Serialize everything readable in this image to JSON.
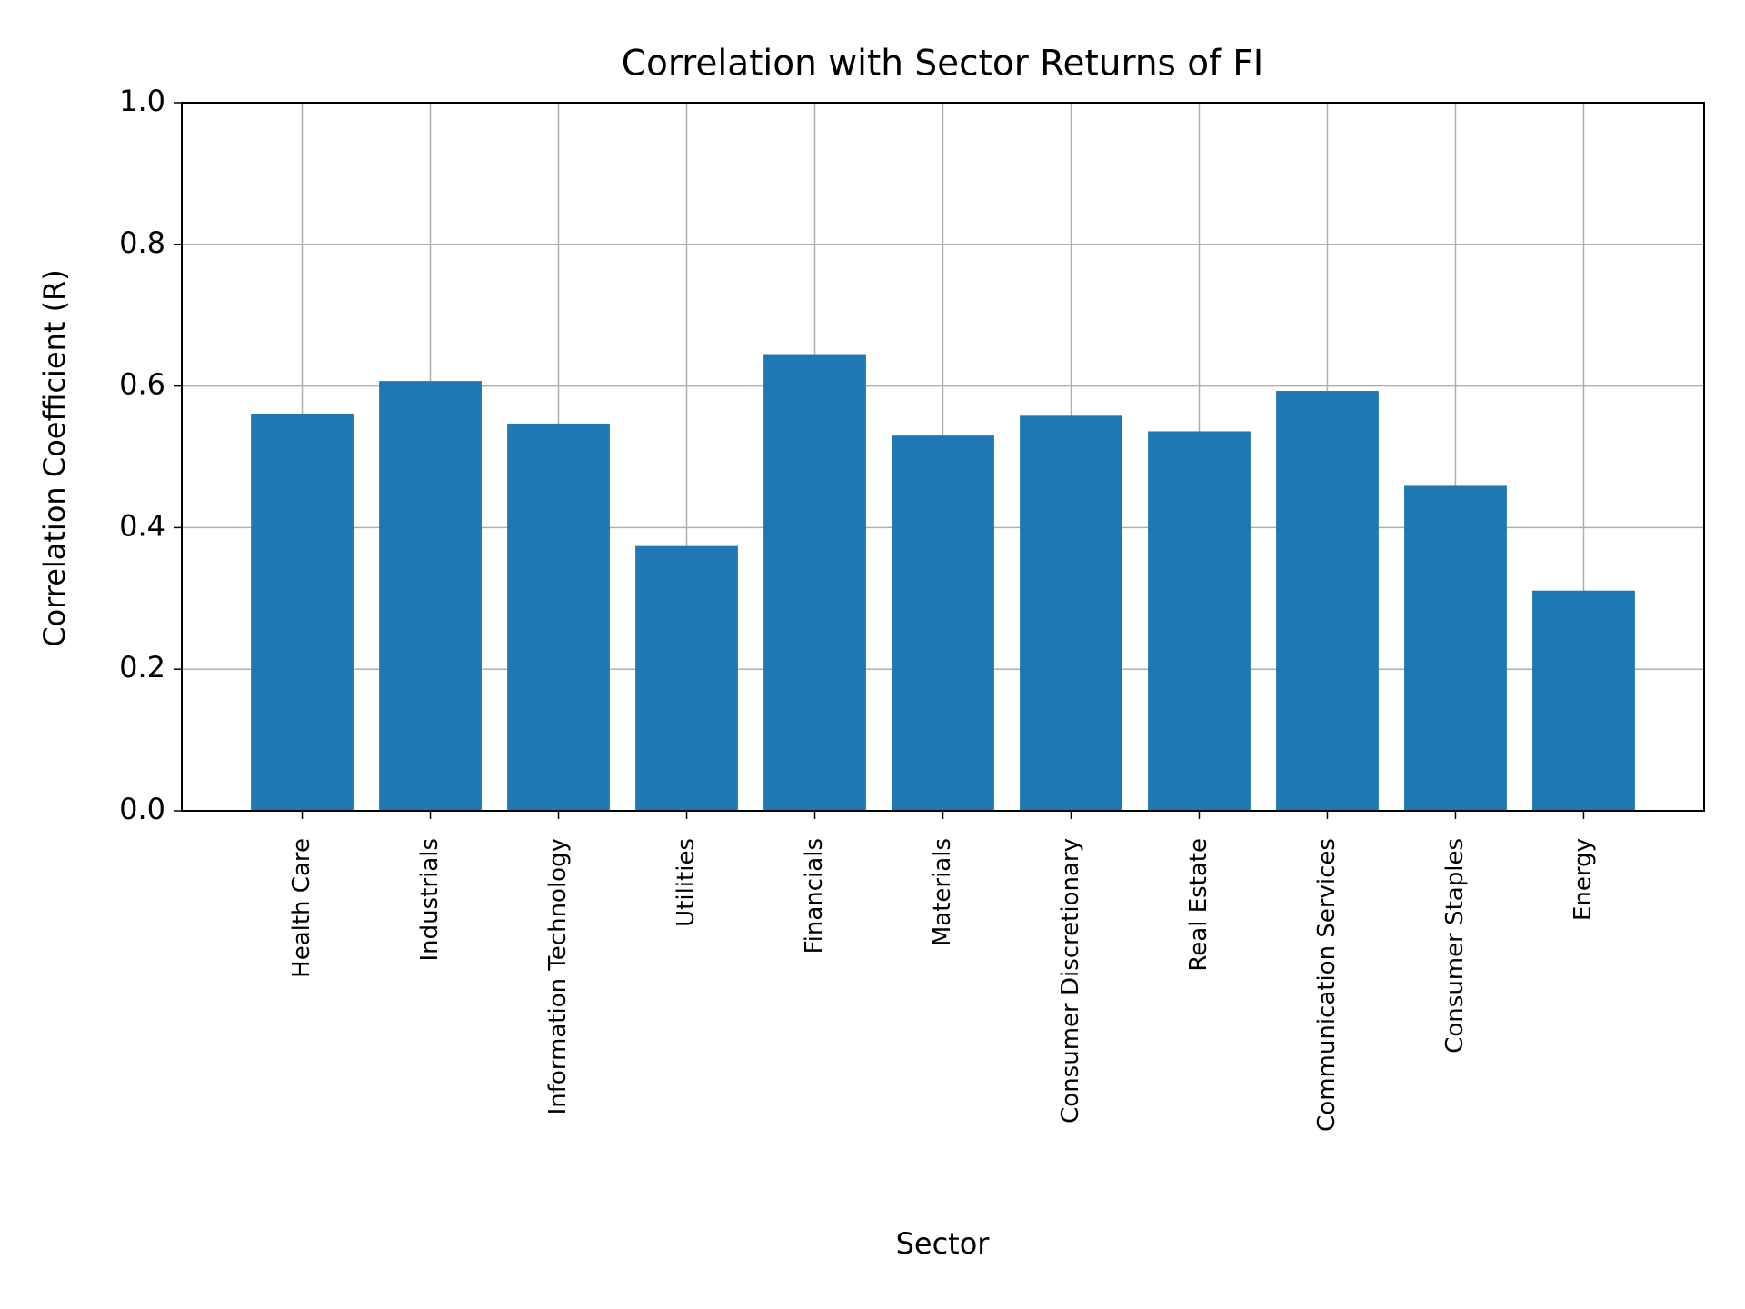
{
  "chart_data": {
    "type": "bar",
    "title": "Correlation with Sector Returns of FI",
    "x_label": "Sector",
    "y_label": "Correlation Coefficient (R)",
    "categories": [
      "Health Care",
      "Industrials",
      "Information Technology",
      "Utilities",
      "Financials",
      "Materials",
      "Consumer Discretionary",
      "Real Estate",
      "Communication Services",
      "Consumer Staples",
      "Energy"
    ],
    "values": [
      0.561,
      0.607,
      0.547,
      0.374,
      0.645,
      0.53,
      0.558,
      0.536,
      0.593,
      0.459,
      0.311
    ],
    "color": "#1f77b4",
    "ylim": [
      0,
      1
    ],
    "yticks": [
      {
        "value": 0,
        "label": "0.0"
      },
      0.2,
      0.4,
      0.6,
      0.8,
      {
        "value": 1,
        "label": "1.0"
      }
    ],
    "grid": true
  }
}
